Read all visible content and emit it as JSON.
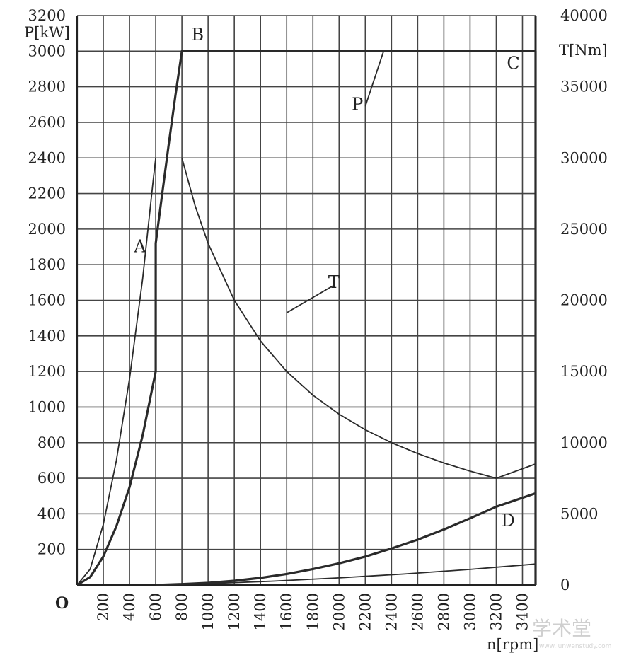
{
  "chart_data": {
    "type": "line",
    "xlabel": "n[rpm]",
    "ylabel_left": "P[kW]",
    "ylabel_right": "T[Nm]",
    "origin_label": "O",
    "xlim": [
      0,
      3500
    ],
    "ylim_left": [
      0,
      3200
    ],
    "ylim_right": [
      0,
      40000
    ],
    "grid": true,
    "x_ticks": [
      200,
      400,
      600,
      800,
      1000,
      1200,
      1400,
      1600,
      1800,
      2000,
      2200,
      2400,
      2600,
      2800,
      3000,
      3200,
      3400
    ],
    "y_ticks_left": [
      200,
      400,
      600,
      800,
      1000,
      1200,
      1400,
      1600,
      1800,
      2000,
      2200,
      2400,
      2600,
      2800,
      3000,
      3200
    ],
    "y_ticks_right": [
      0,
      5000,
      10000,
      15000,
      20000,
      25000,
      30000,
      35000,
      40000
    ],
    "series": [
      {
        "axis": "left",
        "width": "thick",
        "points": [
          [
            0,
            0
          ],
          [
            100,
            45
          ],
          [
            200,
            160
          ],
          [
            300,
            330
          ],
          [
            400,
            550
          ],
          [
            500,
            840
          ],
          [
            600,
            1200
          ],
          [
            600,
            1920
          ],
          [
            650,
            2200
          ],
          [
            700,
            2480
          ],
          [
            750,
            2750
          ],
          [
            800,
            3000
          ],
          [
            3500,
            3000
          ],
          [
            3500,
            0
          ]
        ]
      },
      {
        "axis": "left",
        "width": "thin",
        "points": [
          [
            0,
            0
          ],
          [
            100,
            90
          ],
          [
            200,
            340
          ],
          [
            300,
            700
          ],
          [
            400,
            1160
          ],
          [
            500,
            1720
          ],
          [
            580,
            2270
          ],
          [
            600,
            2400
          ]
        ]
      },
      {
        "axis": "right",
        "width": "thin",
        "points": [
          [
            800,
            30000
          ],
          [
            900,
            26667
          ],
          [
            1000,
            24000
          ],
          [
            1200,
            20000
          ],
          [
            1400,
            17143
          ],
          [
            1600,
            15000
          ],
          [
            1800,
            13333
          ],
          [
            2000,
            12000
          ],
          [
            2200,
            10909
          ],
          [
            2400,
            10000
          ],
          [
            2600,
            9231
          ],
          [
            2800,
            8571
          ],
          [
            3000,
            8000
          ],
          [
            3200,
            7500
          ],
          [
            3500,
            8500
          ]
        ]
      },
      {
        "axis": "left",
        "width": "thick",
        "points": [
          [
            600,
            0
          ],
          [
            800,
            5
          ],
          [
            1000,
            12
          ],
          [
            1200,
            24
          ],
          [
            1400,
            40
          ],
          [
            1600,
            62
          ],
          [
            1800,
            90
          ],
          [
            2000,
            122
          ],
          [
            2200,
            160
          ],
          [
            2400,
            205
          ],
          [
            2600,
            255
          ],
          [
            2800,
            312
          ],
          [
            3000,
            375
          ],
          [
            3200,
            440
          ],
          [
            3500,
            515
          ]
        ]
      },
      {
        "axis": "left",
        "width": "thin",
        "points": [
          [
            600,
            0
          ],
          [
            1000,
            8
          ],
          [
            1500,
            22
          ],
          [
            2000,
            40
          ],
          [
            2500,
            62
          ],
          [
            3000,
            88
          ],
          [
            3500,
            118
          ]
        ]
      }
    ],
    "annotations": [
      {
        "text": "A",
        "x": 480,
        "y": 1870
      },
      {
        "text": "B",
        "x": 920,
        "y": 3060
      },
      {
        "text": "C",
        "x": 3330,
        "y": 2900
      },
      {
        "text": "D",
        "x": 3290,
        "y": 330
      },
      {
        "text": "P",
        "x": 2140,
        "y": 2670
      },
      {
        "text": "T",
        "x": 1960,
        "y": 1670
      }
    ],
    "leaders": [
      {
        "from": [
          2200,
          2690
        ],
        "to": [
          2340,
          3000
        ]
      },
      {
        "from": [
          1600,
          1530
        ],
        "to": [
          1950,
          1680
        ]
      }
    ]
  },
  "watermark": {
    "glyphs": "学术堂",
    "url": "www.lunwenstudy.com"
  }
}
